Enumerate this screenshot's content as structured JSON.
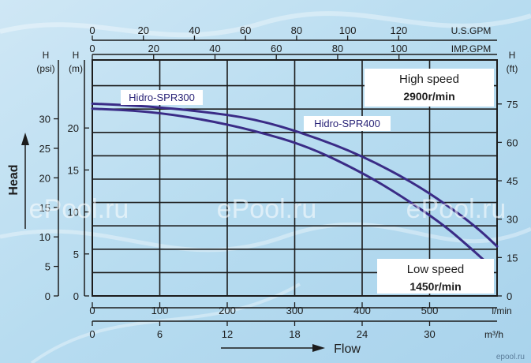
{
  "chart_data": {
    "type": "line",
    "x_lpm": {
      "ticks": [
        0,
        100,
        200,
        300,
        400,
        500
      ],
      "unit": "l/min",
      "lim": [
        0,
        600
      ]
    },
    "x_m3h": {
      "ticks": [
        0,
        6,
        12,
        18,
        24,
        30
      ],
      "unit": "m³/h"
    },
    "x_usgpm": {
      "ticks": [
        0,
        20,
        40,
        60,
        80,
        100,
        120
      ],
      "unit": "U.S.GPM"
    },
    "x_impgpm": {
      "ticks": [
        0,
        20,
        40,
        60,
        80,
        100
      ],
      "unit": "IMP.GPM"
    },
    "y_m": {
      "ticks": [
        0,
        5,
        10,
        15,
        20
      ],
      "unit": "H (m)",
      "lim": [
        0,
        28.1
      ]
    },
    "y_psi": {
      "ticks": [
        0,
        5,
        10,
        15,
        20,
        25,
        30
      ],
      "unit": "H (psi)"
    },
    "y_ft": {
      "ticks": [
        0,
        15,
        30,
        45,
        60,
        75
      ],
      "unit": "H (ft)"
    },
    "ylabel": "Head",
    "xlabel": "Flow",
    "annotations": {
      "high_speed": "High speed",
      "high_rpm": "2900r/min",
      "low_speed": "Low speed",
      "low_rpm": "1450r/min"
    },
    "series": [
      {
        "name": "Hidro-SPR300",
        "color": "#3a2b86",
        "points": [
          [
            0,
            22.3
          ],
          [
            80,
            22.0
          ],
          [
            160,
            21.1
          ],
          [
            240,
            19.7
          ],
          [
            320,
            17.8
          ],
          [
            400,
            14.7
          ],
          [
            460,
            11.8
          ],
          [
            520,
            8.5
          ],
          [
            555,
            6.1
          ],
          [
            580,
            4.3
          ]
        ]
      },
      {
        "name": "Hidro-SPR400",
        "color": "#3a2b86",
        "points": [
          [
            0,
            22.9
          ],
          [
            80,
            22.6
          ],
          [
            160,
            22.0
          ],
          [
            240,
            21.1
          ],
          [
            320,
            19.2
          ],
          [
            400,
            16.7
          ],
          [
            480,
            13.3
          ],
          [
            540,
            10.0
          ],
          [
            575,
            7.8
          ],
          [
            600,
            5.9
          ]
        ]
      }
    ]
  },
  "watermarks": [
    "ePool.ru",
    "ePool.ru",
    "ePool.ru"
  ],
  "corner_mark": "epool.ru"
}
